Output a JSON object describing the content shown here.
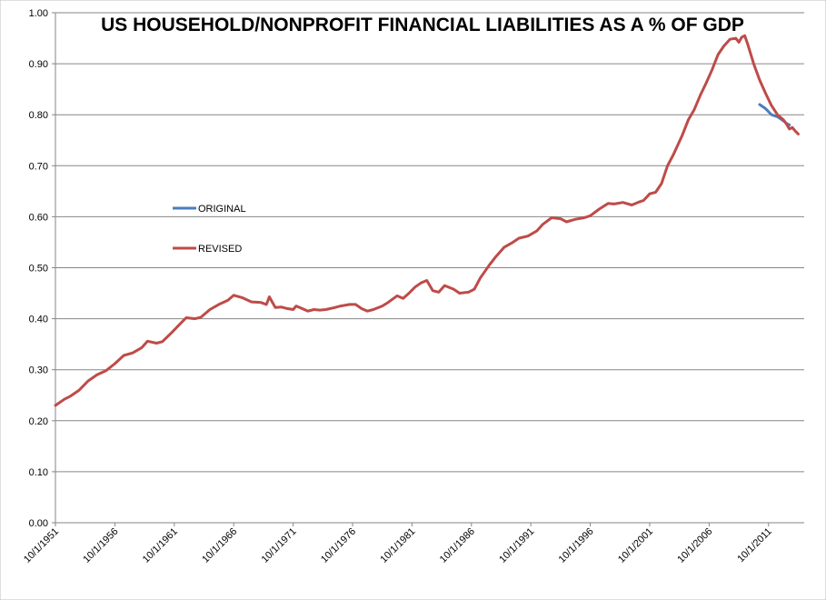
{
  "chart_data": {
    "type": "line",
    "title": "US HOUSEHOLD/NONPROFIT FINANCIAL LIABILITIES AS A % OF GDP",
    "xlabel": "",
    "ylabel": "",
    "x_tick_labels": [
      "10/1/1951",
      "10/1/1956",
      "10/1/1961",
      "10/1/1966",
      "10/1/1971",
      "10/1/1976",
      "10/1/1981",
      "10/1/1986",
      "10/1/1991",
      "10/1/1996",
      "10/1/2001",
      "10/1/2006",
      "10/1/2011"
    ],
    "xlim": [
      1951.75,
      2014.75
    ],
    "y_ticks": [
      "0.00",
      "0.10",
      "0.20",
      "0.30",
      "0.40",
      "0.50",
      "0.60",
      "0.70",
      "0.80",
      "0.90",
      "1.00"
    ],
    "ylim": [
      0,
      1.0
    ],
    "grid": true,
    "legend": "left-middle",
    "series": [
      {
        "name": "ORIGINAL",
        "color": "#4a7ebb",
        "points": [
          [
            2011.0,
            0.82
          ],
          [
            2011.5,
            0.812
          ],
          [
            2012.0,
            0.8
          ],
          [
            2012.5,
            0.796
          ],
          [
            2013.0,
            0.788
          ],
          [
            2013.25,
            0.783
          ],
          [
            2013.5,
            0.78
          ]
        ]
      },
      {
        "name": "REVISED",
        "color": "#be4b48",
        "points": [
          [
            1951.75,
            0.23
          ],
          [
            1952.5,
            0.242
          ],
          [
            1953.0,
            0.248
          ],
          [
            1953.75,
            0.26
          ],
          [
            1954.5,
            0.278
          ],
          [
            1955.25,
            0.29
          ],
          [
            1956.0,
            0.298
          ],
          [
            1956.75,
            0.312
          ],
          [
            1957.5,
            0.328
          ],
          [
            1958.25,
            0.333
          ],
          [
            1959.0,
            0.343
          ],
          [
            1959.5,
            0.356
          ],
          [
            1960.25,
            0.352
          ],
          [
            1960.75,
            0.355
          ],
          [
            1961.5,
            0.372
          ],
          [
            1962.25,
            0.39
          ],
          [
            1962.75,
            0.402
          ],
          [
            1963.5,
            0.4
          ],
          [
            1964.0,
            0.403
          ],
          [
            1964.75,
            0.418
          ],
          [
            1965.5,
            0.428
          ],
          [
            1966.25,
            0.436
          ],
          [
            1966.75,
            0.446
          ],
          [
            1967.5,
            0.441
          ],
          [
            1968.25,
            0.433
          ],
          [
            1969.0,
            0.432
          ],
          [
            1969.5,
            0.428
          ],
          [
            1969.75,
            0.443
          ],
          [
            1970.25,
            0.422
          ],
          [
            1970.75,
            0.423
          ],
          [
            1971.25,
            0.42
          ],
          [
            1971.75,
            0.418
          ],
          [
            1972.0,
            0.425
          ],
          [
            1972.5,
            0.42
          ],
          [
            1973.0,
            0.415
          ],
          [
            1973.5,
            0.418
          ],
          [
            1974.0,
            0.417
          ],
          [
            1974.5,
            0.418
          ],
          [
            1975.25,
            0.422
          ],
          [
            1975.75,
            0.425
          ],
          [
            1976.5,
            0.428
          ],
          [
            1977.0,
            0.428
          ],
          [
            1977.5,
            0.42
          ],
          [
            1978.0,
            0.415
          ],
          [
            1978.5,
            0.418
          ],
          [
            1979.25,
            0.425
          ],
          [
            1979.75,
            0.432
          ],
          [
            1980.5,
            0.445
          ],
          [
            1981.0,
            0.44
          ],
          [
            1981.5,
            0.45
          ],
          [
            1982.0,
            0.462
          ],
          [
            1982.5,
            0.47
          ],
          [
            1983.0,
            0.475
          ],
          [
            1983.5,
            0.455
          ],
          [
            1984.0,
            0.452
          ],
          [
            1984.5,
            0.465
          ],
          [
            1985.25,
            0.458
          ],
          [
            1985.75,
            0.45
          ],
          [
            1986.5,
            0.452
          ],
          [
            1987.0,
            0.458
          ],
          [
            1987.5,
            0.48
          ],
          [
            1988.25,
            0.505
          ],
          [
            1988.75,
            0.52
          ],
          [
            1989.5,
            0.54
          ],
          [
            1990.25,
            0.55
          ],
          [
            1990.75,
            0.558
          ],
          [
            1991.5,
            0.562
          ],
          [
            1992.25,
            0.572
          ],
          [
            1992.75,
            0.585
          ],
          [
            1993.5,
            0.598
          ],
          [
            1994.25,
            0.596
          ],
          [
            1994.75,
            0.59
          ],
          [
            1995.5,
            0.595
          ],
          [
            1996.25,
            0.598
          ],
          [
            1996.75,
            0.602
          ],
          [
            1997.5,
            0.615
          ],
          [
            1998.25,
            0.626
          ],
          [
            1998.75,
            0.625
          ],
          [
            1999.5,
            0.628
          ],
          [
            2000.25,
            0.623
          ],
          [
            2000.75,
            0.628
          ],
          [
            2001.25,
            0.632
          ],
          [
            2001.75,
            0.645
          ],
          [
            2002.25,
            0.648
          ],
          [
            2002.75,
            0.665
          ],
          [
            2003.25,
            0.7
          ],
          [
            2003.75,
            0.722
          ],
          [
            2004.5,
            0.76
          ],
          [
            2005.0,
            0.79
          ],
          [
            2005.5,
            0.81
          ],
          [
            2006.0,
            0.838
          ],
          [
            2006.5,
            0.862
          ],
          [
            2007.0,
            0.888
          ],
          [
            2007.5,
            0.918
          ],
          [
            2008.0,
            0.935
          ],
          [
            2008.5,
            0.948
          ],
          [
            2009.0,
            0.95
          ],
          [
            2009.25,
            0.942
          ],
          [
            2009.5,
            0.952
          ],
          [
            2009.75,
            0.955
          ],
          [
            2010.0,
            0.938
          ],
          [
            2010.5,
            0.9
          ],
          [
            2011.0,
            0.868
          ],
          [
            2011.5,
            0.842
          ],
          [
            2012.0,
            0.818
          ],
          [
            2012.5,
            0.8
          ],
          [
            2013.0,
            0.79
          ],
          [
            2013.25,
            0.782
          ],
          [
            2013.5,
            0.772
          ],
          [
            2013.75,
            0.775
          ],
          [
            2014.0,
            0.768
          ],
          [
            2014.25,
            0.762
          ]
        ]
      }
    ]
  }
}
